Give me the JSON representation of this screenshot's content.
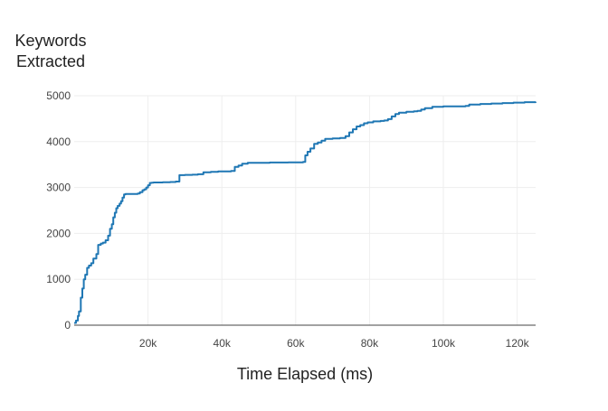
{
  "chart_data": {
    "type": "line",
    "title": "",
    "xlabel": "Time Elapsed (ms)",
    "ylabel_lines": [
      "Keywords",
      "Extracted"
    ],
    "xlim": [
      0,
      125000
    ],
    "ylim": [
      0,
      5000
    ],
    "grid": true,
    "line_shape": "step",
    "colors": {
      "series": "#1f77b4",
      "axis": "#444444",
      "grid": "#eeeeee"
    },
    "x_ticks": [
      {
        "value": 20000,
        "label": "20k"
      },
      {
        "value": 40000,
        "label": "40k"
      },
      {
        "value": 60000,
        "label": "60k"
      },
      {
        "value": 80000,
        "label": "80k"
      },
      {
        "value": 100000,
        "label": "100k"
      },
      {
        "value": 120000,
        "label": "120k"
      }
    ],
    "y_ticks": [
      {
        "value": 0,
        "label": "0"
      },
      {
        "value": 1000,
        "label": "1000"
      },
      {
        "value": 2000,
        "label": "2000"
      },
      {
        "value": 3000,
        "label": "3000"
      },
      {
        "value": 4000,
        "label": "4000"
      },
      {
        "value": 5000,
        "label": "5000"
      }
    ],
    "series": [
      {
        "x": [
          0,
          500,
          1000,
          1300,
          1800,
          2200,
          2600,
          3000,
          3500,
          4000,
          4600,
          5200,
          6000,
          6500,
          7200,
          7800,
          8500,
          9200,
          9700,
          10200,
          10600,
          11000,
          11400,
          11800,
          12300,
          12700,
          13100,
          13500,
          13900,
          14500,
          15200,
          15800,
          16500,
          17200,
          17800,
          18500,
          19000,
          19500,
          20000,
          20500,
          21000,
          21500,
          22000,
          24000,
          26000,
          27500,
          28500,
          30000,
          32000,
          33500,
          35000,
          37000,
          39000,
          41000,
          42500,
          43500,
          44500,
          45500,
          47000,
          50000,
          53000,
          56000,
          58000,
          60000,
          61000,
          62000,
          62600,
          63200,
          64000,
          65000,
          66000,
          67000,
          68000,
          70000,
          72000,
          73500,
          74500,
          75500,
          76500,
          77500,
          78500,
          79500,
          81000,
          83000,
          84000,
          85000,
          86000,
          87000,
          88000,
          90000,
          92000,
          93000,
          94000,
          95000,
          97000,
          100000,
          103000,
          106000,
          107000,
          110000,
          113000,
          116000,
          119000,
          122000,
          125000
        ],
        "y": [
          50,
          100,
          200,
          300,
          600,
          800,
          1000,
          1100,
          1250,
          1300,
          1350,
          1450,
          1550,
          1750,
          1780,
          1800,
          1850,
          1950,
          2100,
          2200,
          2350,
          2450,
          2550,
          2600,
          2650,
          2700,
          2780,
          2850,
          2860,
          2860,
          2860,
          2860,
          2860,
          2870,
          2900,
          2940,
          2960,
          3000,
          3050,
          3100,
          3105,
          3110,
          3110,
          3115,
          3120,
          3130,
          3270,
          3275,
          3280,
          3290,
          3330,
          3340,
          3350,
          3350,
          3360,
          3450,
          3480,
          3520,
          3540,
          3540,
          3545,
          3545,
          3550,
          3550,
          3550,
          3560,
          3700,
          3780,
          3850,
          3950,
          3980,
          4020,
          4060,
          4070,
          4080,
          4120,
          4200,
          4270,
          4330,
          4360,
          4400,
          4420,
          4440,
          4450,
          4460,
          4490,
          4550,
          4600,
          4630,
          4650,
          4660,
          4670,
          4700,
          4730,
          4760,
          4770,
          4770,
          4780,
          4810,
          4820,
          4830,
          4840,
          4850,
          4860,
          4870
        ]
      }
    ]
  }
}
